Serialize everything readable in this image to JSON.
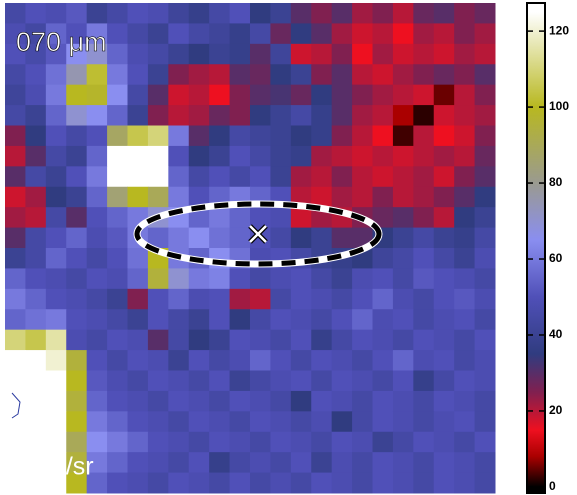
{
  "chart_data": {
    "type": "heatmap",
    "title": "070 μm",
    "colorbar_label": "MJy/sr",
    "zlim": [
      -1.6,
      127.4
    ],
    "zticks": [
      0,
      20,
      40,
      60,
      80,
      100,
      120
    ],
    "colorscale": [
      [
        0,
        "#000000"
      ],
      [
        8,
        "#aa0000"
      ],
      [
        15,
        "#ee1020"
      ],
      [
        25,
        "#802050"
      ],
      [
        35,
        "#303c80"
      ],
      [
        50,
        "#5050b8"
      ],
      [
        65,
        "#8a8ef0"
      ],
      [
        80,
        "#9a9a90"
      ],
      [
        100,
        "#b8b820"
      ],
      [
        125,
        "#ffffff"
      ]
    ],
    "z": [
      [
        45,
        50,
        48,
        52,
        40,
        45,
        50,
        48,
        42,
        38,
        45,
        50,
        35,
        40,
        30,
        25,
        30,
        22,
        25,
        20,
        28,
        30,
        25,
        28
      ],
      [
        48,
        44,
        55,
        50,
        60,
        50,
        45,
        40,
        50,
        45,
        42,
        38,
        45,
        28,
        35,
        30,
        22,
        18,
        20,
        15,
        22,
        20,
        25,
        22
      ],
      [
        50,
        46,
        52,
        65,
        70,
        55,
        48,
        45,
        40,
        35,
        40,
        38,
        30,
        42,
        18,
        20,
        25,
        15,
        22,
        18,
        20,
        18,
        22,
        20
      ],
      [
        45,
        50,
        58,
        75,
        102,
        60,
        50,
        40,
        25,
        22,
        20,
        30,
        28,
        35,
        40,
        25,
        30,
        20,
        18,
        22,
        25,
        28,
        25,
        30
      ],
      [
        42,
        48,
        60,
        100,
        98,
        65,
        45,
        30,
        18,
        20,
        15,
        25,
        30,
        32,
        28,
        35,
        30,
        25,
        22,
        20,
        18,
        5,
        20,
        25
      ],
      [
        45,
        40,
        55,
        70,
        65,
        55,
        40,
        25,
        20,
        22,
        28,
        25,
        35,
        40,
        45,
        38,
        30,
        22,
        20,
        8,
        2,
        18,
        20,
        22
      ],
      [
        25,
        35,
        50,
        45,
        50,
        88,
        105,
        110,
        60,
        30,
        35,
        45,
        42,
        40,
        35,
        38,
        25,
        20,
        15,
        3,
        20,
        15,
        18,
        25
      ],
      [
        20,
        30,
        45,
        40,
        55,
        125,
        125,
        125,
        50,
        35,
        40,
        50,
        45,
        40,
        38,
        22,
        20,
        18,
        20,
        18,
        20,
        22,
        20,
        28
      ],
      [
        30,
        45,
        40,
        50,
        60,
        125,
        125,
        125,
        55,
        45,
        50,
        45,
        50,
        40,
        22,
        20,
        25,
        20,
        18,
        20,
        22,
        18,
        25,
        30
      ],
      [
        18,
        22,
        35,
        40,
        55,
        85,
        100,
        90,
        60,
        50,
        55,
        60,
        55,
        50,
        20,
        18,
        22,
        20,
        25,
        20,
        22,
        25,
        30,
        35
      ],
      [
        22,
        20,
        45,
        30,
        50,
        55,
        60,
        70,
        65,
        55,
        60,
        55,
        50,
        48,
        18,
        22,
        20,
        25,
        28,
        30,
        25,
        20,
        35,
        40
      ],
      [
        30,
        45,
        50,
        55,
        48,
        52,
        60,
        55,
        60,
        65,
        58,
        55,
        50,
        45,
        35,
        40,
        30,
        30,
        35,
        40,
        45,
        40,
        38,
        45
      ],
      [
        40,
        45,
        55,
        50,
        45,
        50,
        58,
        100,
        60,
        55,
        65,
        58,
        48,
        50,
        45,
        40,
        38,
        35,
        42,
        45,
        50,
        45,
        40,
        48
      ],
      [
        55,
        50,
        48,
        45,
        50,
        48,
        55,
        95,
        70,
        60,
        62,
        50,
        45,
        48,
        50,
        45,
        40,
        48,
        50,
        45,
        52,
        50,
        48,
        45
      ],
      [
        60,
        55,
        50,
        48,
        45,
        40,
        25,
        50,
        55,
        48,
        50,
        22,
        20,
        45,
        50,
        48,
        45,
        50,
        55,
        48,
        45,
        50,
        52,
        48
      ],
      [
        55,
        58,
        60,
        50,
        48,
        45,
        40,
        50,
        45,
        40,
        50,
        35,
        45,
        50,
        48,
        45,
        50,
        55,
        48,
        50,
        45,
        48,
        50,
        45
      ],
      [
        110,
        105,
        115,
        48,
        45,
        50,
        48,
        30,
        45,
        35,
        40,
        50,
        48,
        45,
        50,
        38,
        45,
        50,
        48,
        45,
        50,
        48,
        45,
        50
      ],
      [
        125,
        125,
        120,
        95,
        50,
        45,
        50,
        48,
        40,
        50,
        45,
        48,
        55,
        50,
        45,
        50,
        48,
        45,
        50,
        55,
        48,
        50,
        45,
        48
      ],
      [
        125,
        125,
        125,
        100,
        52,
        48,
        45,
        50,
        48,
        45,
        50,
        40,
        45,
        48,
        50,
        45,
        50,
        48,
        45,
        50,
        38,
        45,
        50,
        48
      ],
      [
        125,
        125,
        125,
        95,
        55,
        50,
        48,
        45,
        50,
        48,
        45,
        50,
        48,
        45,
        35,
        50,
        48,
        45,
        50,
        48,
        45,
        50,
        48,
        45
      ],
      [
        125,
        125,
        125,
        100,
        60,
        55,
        50,
        48,
        45,
        50,
        48,
        45,
        50,
        48,
        45,
        48,
        35,
        45,
        50,
        48,
        45,
        48,
        50,
        45
      ],
      [
        125,
        125,
        125,
        90,
        65,
        60,
        55,
        50,
        48,
        45,
        50,
        48,
        45,
        50,
        48,
        45,
        50,
        48,
        40,
        45,
        50,
        48,
        45,
        50
      ],
      [
        125,
        125,
        125,
        95,
        60,
        55,
        50,
        48,
        45,
        50,
        38,
        45,
        48,
        45,
        50,
        40,
        48,
        45,
        50,
        48,
        45,
        50,
        48,
        45
      ],
      [
        125,
        125,
        125,
        100,
        55,
        50,
        48,
        45,
        50,
        48,
        45,
        50,
        45,
        48,
        45,
        50,
        48,
        45,
        50,
        48,
        45,
        50,
        48,
        45
      ]
    ]
  }
}
